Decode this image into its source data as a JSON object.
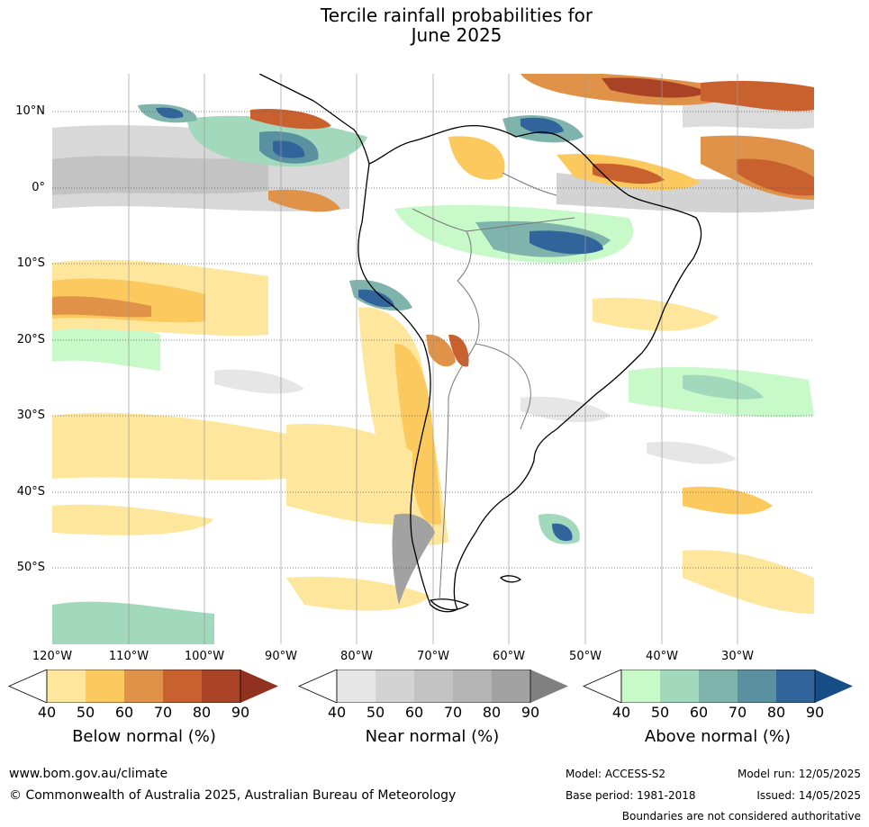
{
  "title": {
    "line1": "Tercile rainfall probabilities for",
    "line2": "June 2025"
  },
  "map": {
    "lat_labels": [
      "10°N",
      "0°",
      "10°S",
      "20°S",
      "30°S",
      "40°S",
      "50°S"
    ],
    "lon_labels": [
      "120°W",
      "110°W",
      "100°W",
      "90°W",
      "80°W",
      "70°W",
      "60°W",
      "50°W",
      "40°W",
      "30°W"
    ]
  },
  "colorbars": {
    "below": {
      "label": "Below normal (%)",
      "ticks": [
        "40",
        "50",
        "60",
        "70",
        "80",
        "90"
      ],
      "colors": [
        "#ffffff",
        "#fee79c",
        "#fcc95f",
        "#e09249",
        "#c9612f",
        "#aa4326",
        "#913220"
      ]
    },
    "near": {
      "label": "Near normal (%)",
      "ticks": [
        "40",
        "50",
        "60",
        "70",
        "80",
        "90"
      ],
      "colors": [
        "#ffffff",
        "#e6e6e6",
        "#d3d3d3",
        "#c3c3c3",
        "#b4b4b4",
        "#a2a2a2",
        "#808080"
      ]
    },
    "above": {
      "label": "Above normal (%)",
      "ticks": [
        "40",
        "50",
        "60",
        "70",
        "80",
        "90"
      ],
      "colors": [
        "#ffffff",
        "#c7f9c9",
        "#a2d8bb",
        "#7fb4ac",
        "#5a91a1",
        "#31649a",
        "#164d86"
      ]
    }
  },
  "footer": {
    "url": "www.bom.gov.au/climate",
    "copyright": "© Commonwealth of Australia 2025, Australian Bureau of Meteorology",
    "model": "Model: ACCESS-S2",
    "base_period": "Base period: 1981-2018",
    "model_run": "Model run: 12/05/2025",
    "issued": "Issued: 14/05/2025",
    "disclaimer": "Boundaries are not considered authoritative"
  }
}
